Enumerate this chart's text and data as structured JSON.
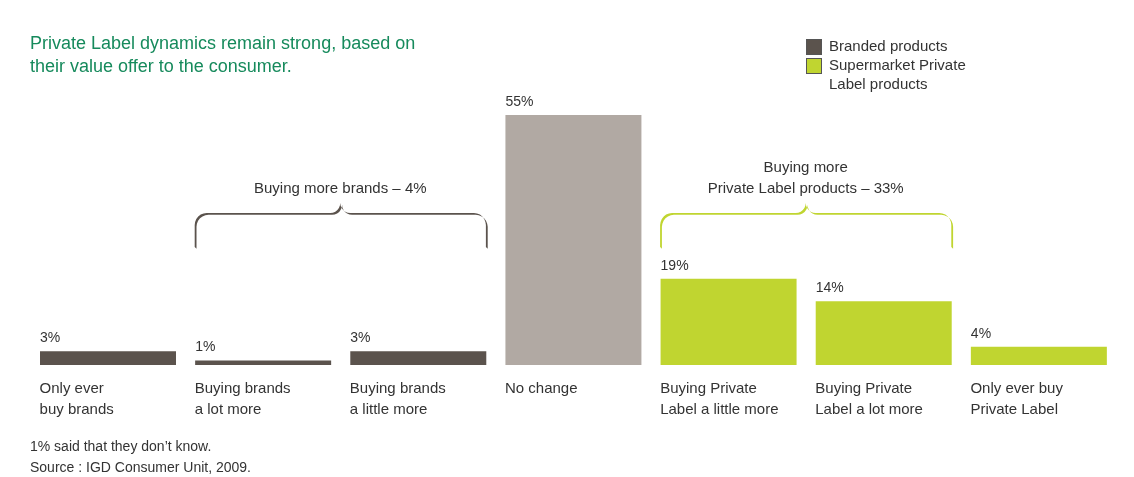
{
  "chart_data": {
    "type": "bar",
    "title": "Private Label dynamics remain strong, based on their value offer to the consumer.",
    "categories": [
      "Only ever buy brands",
      "Buying brands a lot more",
      "Buying brands a little more",
      "No change",
      "Buying Private Label a little more",
      "Buying Private Label a lot more",
      "Only ever buy Private Label"
    ],
    "series": [
      {
        "name": "Branded products",
        "color": "#5b534d",
        "values": [
          3,
          1,
          3,
          null,
          null,
          null,
          null
        ],
        "value_labels": [
          "3%",
          "1%",
          "3%",
          null,
          null,
          null,
          null
        ]
      },
      {
        "color": "#b1a9a3",
        "values": [
          null,
          null,
          null,
          55,
          null,
          null,
          null
        ],
        "value_labels": [
          null,
          null,
          null,
          "55%",
          null,
          null,
          null
        ]
      },
      {
        "name": "Supermarket Private Label products",
        "color": "#c0d530",
        "values": [
          null,
          null,
          null,
          null,
          19,
          14,
          4
        ],
        "value_labels": [
          null,
          null,
          null,
          null,
          "19%",
          "14%",
          "4%"
        ]
      }
    ],
    "stacked": true,
    "data_labels": true,
    "legend": "top right",
    "annotations": [
      "Buying more brands – 4%",
      "Buying more Private Label products – 33%",
      "1% said that they don’t know.",
      "Source : IGD Consumer Unit, 2009."
    ]
  }
}
